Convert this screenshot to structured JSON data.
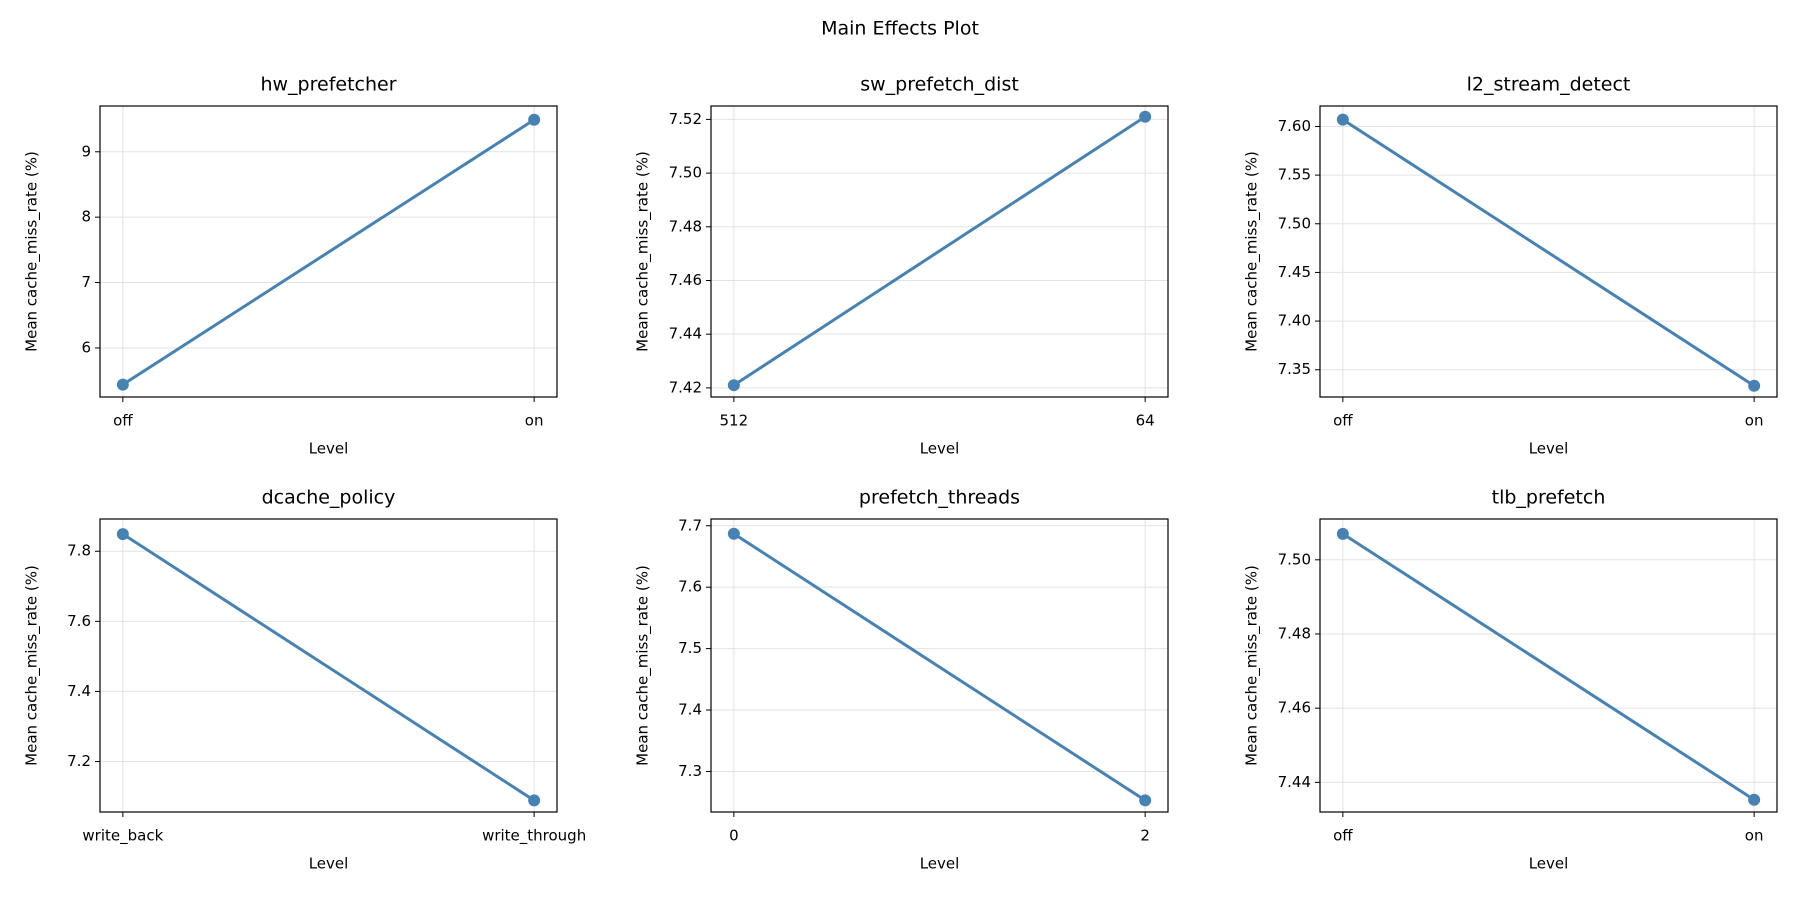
{
  "title": "Main Effects Plot",
  "chart_data": [
    {
      "type": "line",
      "title": "hw_prefetcher",
      "xlabel": "Level",
      "ylabel": "Mean cache_miss_rate (%)",
      "categories": [
        "off",
        "on"
      ],
      "values": [
        5.44,
        9.49
      ],
      "color": "#4682b4",
      "ylim": [
        5.25,
        9.7
      ],
      "yticks": [
        6,
        7,
        8,
        9
      ],
      "grid": true
    },
    {
      "type": "line",
      "title": "sw_prefetch_dist",
      "xlabel": "Level",
      "ylabel": "Mean cache_miss_rate (%)",
      "categories": [
        "512",
        "64"
      ],
      "values": [
        7.421,
        7.521
      ],
      "color": "#4682b4",
      "ylim": [
        7.4166,
        7.525
      ],
      "yticks": [
        {
          "value": 7.42,
          "label": "7.42"
        },
        {
          "value": 7.44,
          "label": "7.44"
        },
        {
          "value": 7.46,
          "label": "7.46"
        },
        {
          "value": 7.48,
          "label": "7.48"
        },
        {
          "value": 7.5,
          "label": "7.50"
        },
        {
          "value": 7.52,
          "label": "7.52"
        }
      ],
      "grid": true
    },
    {
      "type": "line",
      "title": "l2_stream_detect",
      "xlabel": "Level",
      "ylabel": "Mean cache_miss_rate (%)",
      "categories": [
        "off",
        "on"
      ],
      "values": [
        7.607,
        7.3335
      ],
      "color": "#4682b4",
      "ylim": [
        7.322,
        7.621
      ],
      "yticks": [
        {
          "value": 7.35,
          "label": "7.35"
        },
        {
          "value": 7.4,
          "label": "7.40"
        },
        {
          "value": 7.45,
          "label": "7.45"
        },
        {
          "value": 7.5,
          "label": "7.50"
        },
        {
          "value": 7.55,
          "label": "7.55"
        },
        {
          "value": 7.6,
          "label": "7.60"
        }
      ],
      "grid": true
    },
    {
      "type": "line",
      "title": "dcache_policy",
      "xlabel": "Level",
      "ylabel": "Mean cache_miss_rate (%)",
      "categories": [
        "write_back",
        "write_through"
      ],
      "values": [
        7.849,
        7.089
      ],
      "color": "#4682b4",
      "ylim": [
        7.056,
        7.892
      ],
      "yticks": [
        7.2,
        7.4,
        7.6,
        7.8
      ],
      "grid": true
    },
    {
      "type": "line",
      "title": "prefetch_threads",
      "xlabel": "Level",
      "ylabel": "Mean cache_miss_rate (%)",
      "categories": [
        "0",
        "2"
      ],
      "values": [
        7.687,
        7.253
      ],
      "color": "#4682b4",
      "ylim": [
        7.234,
        7.711
      ],
      "yticks": [
        7.3,
        7.4,
        7.5,
        7.6,
        7.7
      ],
      "grid": true
    },
    {
      "type": "line",
      "title": "tlb_prefetch",
      "xlabel": "Level",
      "ylabel": "Mean cache_miss_rate (%)",
      "categories": [
        "off",
        "on"
      ],
      "values": [
        7.507,
        7.4353
      ],
      "color": "#4682b4",
      "ylim": [
        7.432,
        7.511
      ],
      "yticks": [
        7.44,
        7.46,
        7.48,
        {
          "value": 7.5,
          "label": "7.50"
        }
      ],
      "grid": true
    }
  ]
}
